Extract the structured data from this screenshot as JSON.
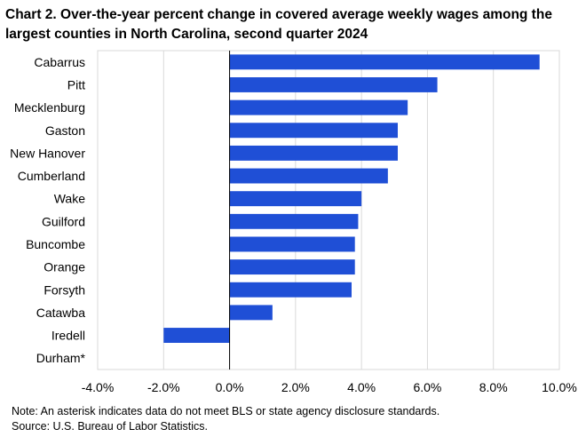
{
  "chart_data": {
    "type": "bar",
    "orientation": "horizontal",
    "title": "Chart 2. Over-the-year percent change in covered average weekly wages among the largest counties in North Carolina, second quarter 2024",
    "categories": [
      "Cabarrus",
      "Pitt",
      "Mecklenburg",
      "Gaston",
      "New Hanover",
      "Cumberland",
      "Wake",
      "Guilford",
      "Buncombe",
      "Orange",
      "Forsyth",
      "Catawba",
      "Iredell",
      "Durham*"
    ],
    "values": [
      9.4,
      6.3,
      5.4,
      5.1,
      5.1,
      4.8,
      4.0,
      3.9,
      3.8,
      3.8,
      3.7,
      1.3,
      -2.0,
      null
    ],
    "xlim": [
      -4.0,
      10.0
    ],
    "xticks": [
      -4.0,
      -2.0,
      0.0,
      2.0,
      4.0,
      6.0,
      8.0,
      10.0
    ],
    "xtick_labels": [
      "-4.0%",
      "-2.0%",
      "0.0%",
      "2.0%",
      "4.0%",
      "6.0%",
      "8.0%",
      "10.0%"
    ],
    "xlabel": "",
    "ylabel": "",
    "bar_color": "#1f4fd6",
    "grid": true
  },
  "notes": {
    "note": "Note: An asterisk indicates data do not meet BLS or state agency disclosure standards.",
    "source": "Source: U.S. Bureau of Labor Statistics."
  }
}
